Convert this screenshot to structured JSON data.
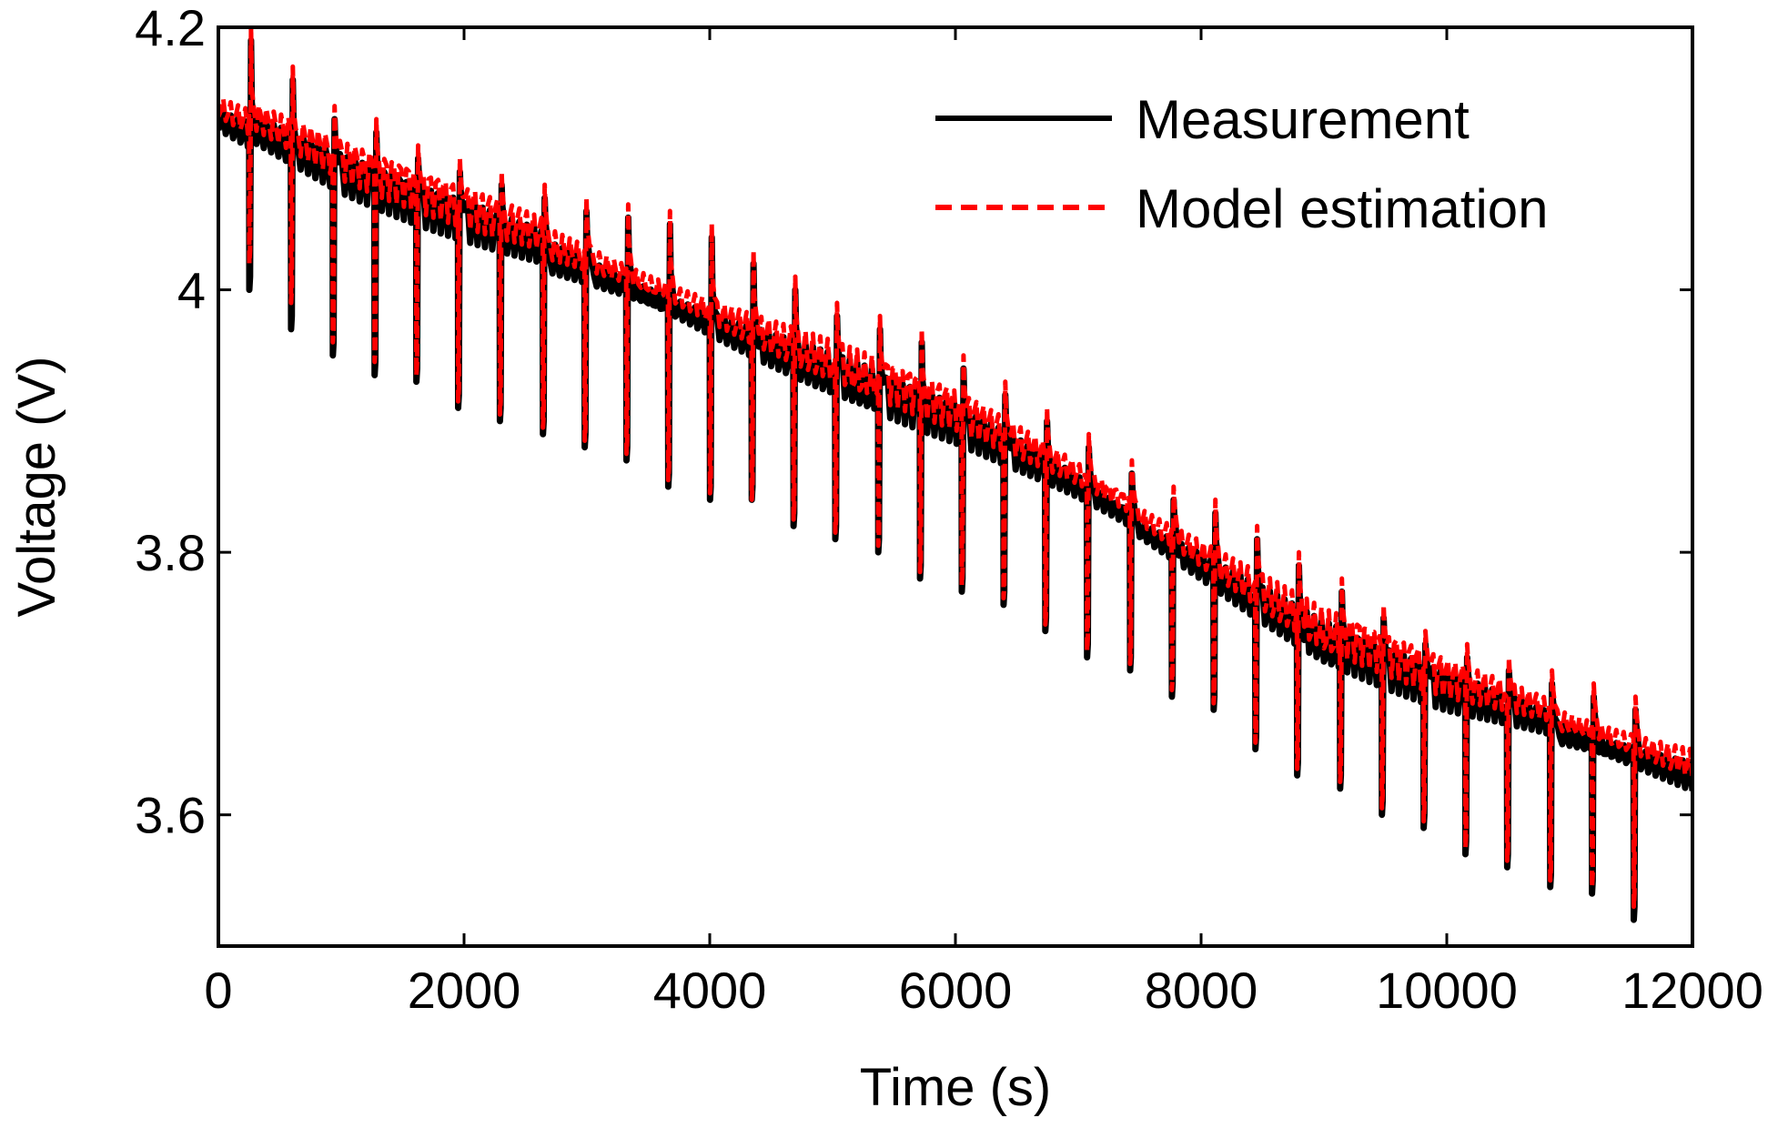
{
  "chart_data": {
    "type": "line",
    "title": "",
    "xlabel": "Time (s)",
    "ylabel": "Voltage (V)",
    "xlim": [
      0,
      12000
    ],
    "ylim": [
      3.5,
      4.2
    ],
    "xticks": [
      0,
      2000,
      4000,
      6000,
      8000,
      10000,
      12000
    ],
    "xtick_labels": [
      "0",
      "2000",
      "4000",
      "6000",
      "8000",
      "10000",
      "12000"
    ],
    "yticks": [
      3.6,
      3.8,
      4.0,
      4.2
    ],
    "ytick_labels": [
      "3.6",
      "3.8",
      "4",
      "4.2"
    ],
    "grid": false,
    "legend_position": "top-right",
    "pulse_times": [
      250,
      590,
      930,
      1270,
      1610,
      1950,
      2290,
      2640,
      2980,
      3320,
      3660,
      4000,
      4340,
      4680,
      5020,
      5370,
      5710,
      6050,
      6390,
      6730,
      7070,
      7420,
      7760,
      8100,
      8440,
      8780,
      9130,
      9470,
      9810,
      10150,
      10490,
      10840,
      11180,
      11520
    ],
    "baseline": {
      "x": [
        0,
        1000,
        2000,
        3000,
        4000,
        5000,
        6000,
        7000,
        8000,
        9000,
        10000,
        11000,
        12000
      ],
      "y": [
        4.14,
        4.095,
        4.06,
        4.025,
        3.985,
        3.945,
        3.905,
        3.855,
        3.8,
        3.74,
        3.7,
        3.67,
        3.64
      ]
    },
    "series": [
      {
        "name": "Measurement",
        "color": "#000000",
        "style": "solid",
        "pulse_min": [
          4.0,
          3.97,
          3.95,
          3.935,
          3.93,
          3.91,
          3.9,
          3.89,
          3.88,
          3.87,
          3.85,
          3.84,
          3.84,
          3.82,
          3.81,
          3.8,
          3.78,
          3.77,
          3.76,
          3.74,
          3.72,
          3.71,
          3.69,
          3.68,
          3.65,
          3.63,
          3.62,
          3.6,
          3.59,
          3.57,
          3.56,
          3.545,
          3.54,
          3.52
        ],
        "pulse_peak": [
          4.19,
          4.16,
          4.13,
          4.12,
          4.1,
          4.09,
          4.08,
          4.07,
          4.06,
          4.055,
          4.05,
          4.04,
          4.02,
          4.0,
          3.98,
          3.97,
          3.96,
          3.94,
          3.92,
          3.9,
          3.88,
          3.86,
          3.84,
          3.83,
          3.81,
          3.79,
          3.77,
          3.75,
          3.73,
          3.72,
          3.71,
          3.7,
          3.69,
          3.68
        ]
      },
      {
        "name": "Model estimation",
        "color": "#ff0000",
        "style": "dashed",
        "pulse_min": [
          4.02,
          3.99,
          3.96,
          3.945,
          3.935,
          3.915,
          3.905,
          3.895,
          3.885,
          3.875,
          3.855,
          3.845,
          3.84,
          3.825,
          3.815,
          3.805,
          3.785,
          3.775,
          3.765,
          3.745,
          3.725,
          3.715,
          3.695,
          3.685,
          3.655,
          3.635,
          3.625,
          3.605,
          3.595,
          3.575,
          3.565,
          3.55,
          3.545,
          3.53
        ],
        "pulse_peak": [
          4.2,
          4.17,
          4.14,
          4.13,
          4.11,
          4.1,
          4.09,
          4.08,
          4.07,
          4.065,
          4.06,
          4.05,
          4.03,
          4.01,
          3.99,
          3.98,
          3.97,
          3.95,
          3.93,
          3.91,
          3.89,
          3.87,
          3.85,
          3.84,
          3.82,
          3.8,
          3.78,
          3.76,
          3.74,
          3.73,
          3.72,
          3.71,
          3.7,
          3.69
        ]
      }
    ]
  }
}
